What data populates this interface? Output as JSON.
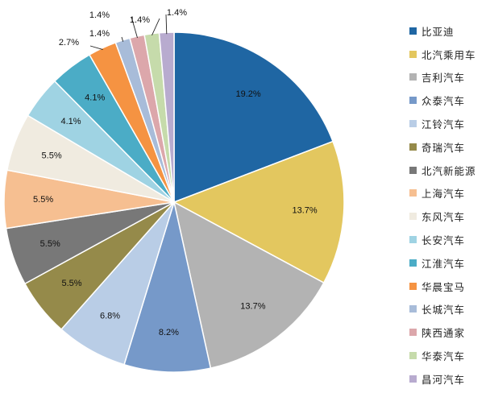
{
  "chart_data": {
    "type": "pie",
    "series": [
      {
        "name": "比亚迪",
        "value": 19.2,
        "label": "19.2%",
        "color": "#1f66a3"
      },
      {
        "name": "北汽乘用车",
        "value": 13.7,
        "label": "13.7%",
        "color": "#e3c75f"
      },
      {
        "name": "吉利汽车",
        "value": 13.7,
        "label": "13.7%",
        "color": "#b3b3b3"
      },
      {
        "name": "众泰汽车",
        "value": 8.2,
        "label": "8.2%",
        "color": "#7699c9"
      },
      {
        "name": "江铃汽车",
        "value": 6.8,
        "label": "6.8%",
        "color": "#b9cde6"
      },
      {
        "name": "奇瑞汽车",
        "value": 5.5,
        "label": "5.5%",
        "color": "#958a4a"
      },
      {
        "name": "北汽新能源",
        "value": 5.5,
        "label": "5.5%",
        "color": "#787878"
      },
      {
        "name": "上海汽车",
        "value": 5.5,
        "label": "5.5%",
        "color": "#f6bf91"
      },
      {
        "name": "东风汽车",
        "value": 5.5,
        "label": "5.5%",
        "color": "#f0ebe0"
      },
      {
        "name": "长安汽车",
        "value": 4.1,
        "label": "4.1%",
        "color": "#9fd3e3"
      },
      {
        "name": "江淮汽车",
        "value": 4.1,
        "label": "4.1%",
        "color": "#4bacc6"
      },
      {
        "name": "华晨宝马",
        "value": 2.7,
        "label": "2.7%",
        "color": "#f59342"
      },
      {
        "name": "长城汽车",
        "value": 1.4,
        "label": "1.4%",
        "color": "#a8bcd9"
      },
      {
        "name": "陕西通家",
        "value": 1.4,
        "label": "1.4%",
        "color": "#dca7ab"
      },
      {
        "name": "华泰汽车",
        "value": 1.4,
        "label": "1.4%",
        "color": "#c6dbab"
      },
      {
        "name": "昌河汽车",
        "value": 1.4,
        "label": "1.4%",
        "color": "#b8abcf"
      }
    ],
    "legend_position": "right",
    "grid": false,
    "start_angle": "12 o'clock",
    "direction": "clockwise"
  }
}
